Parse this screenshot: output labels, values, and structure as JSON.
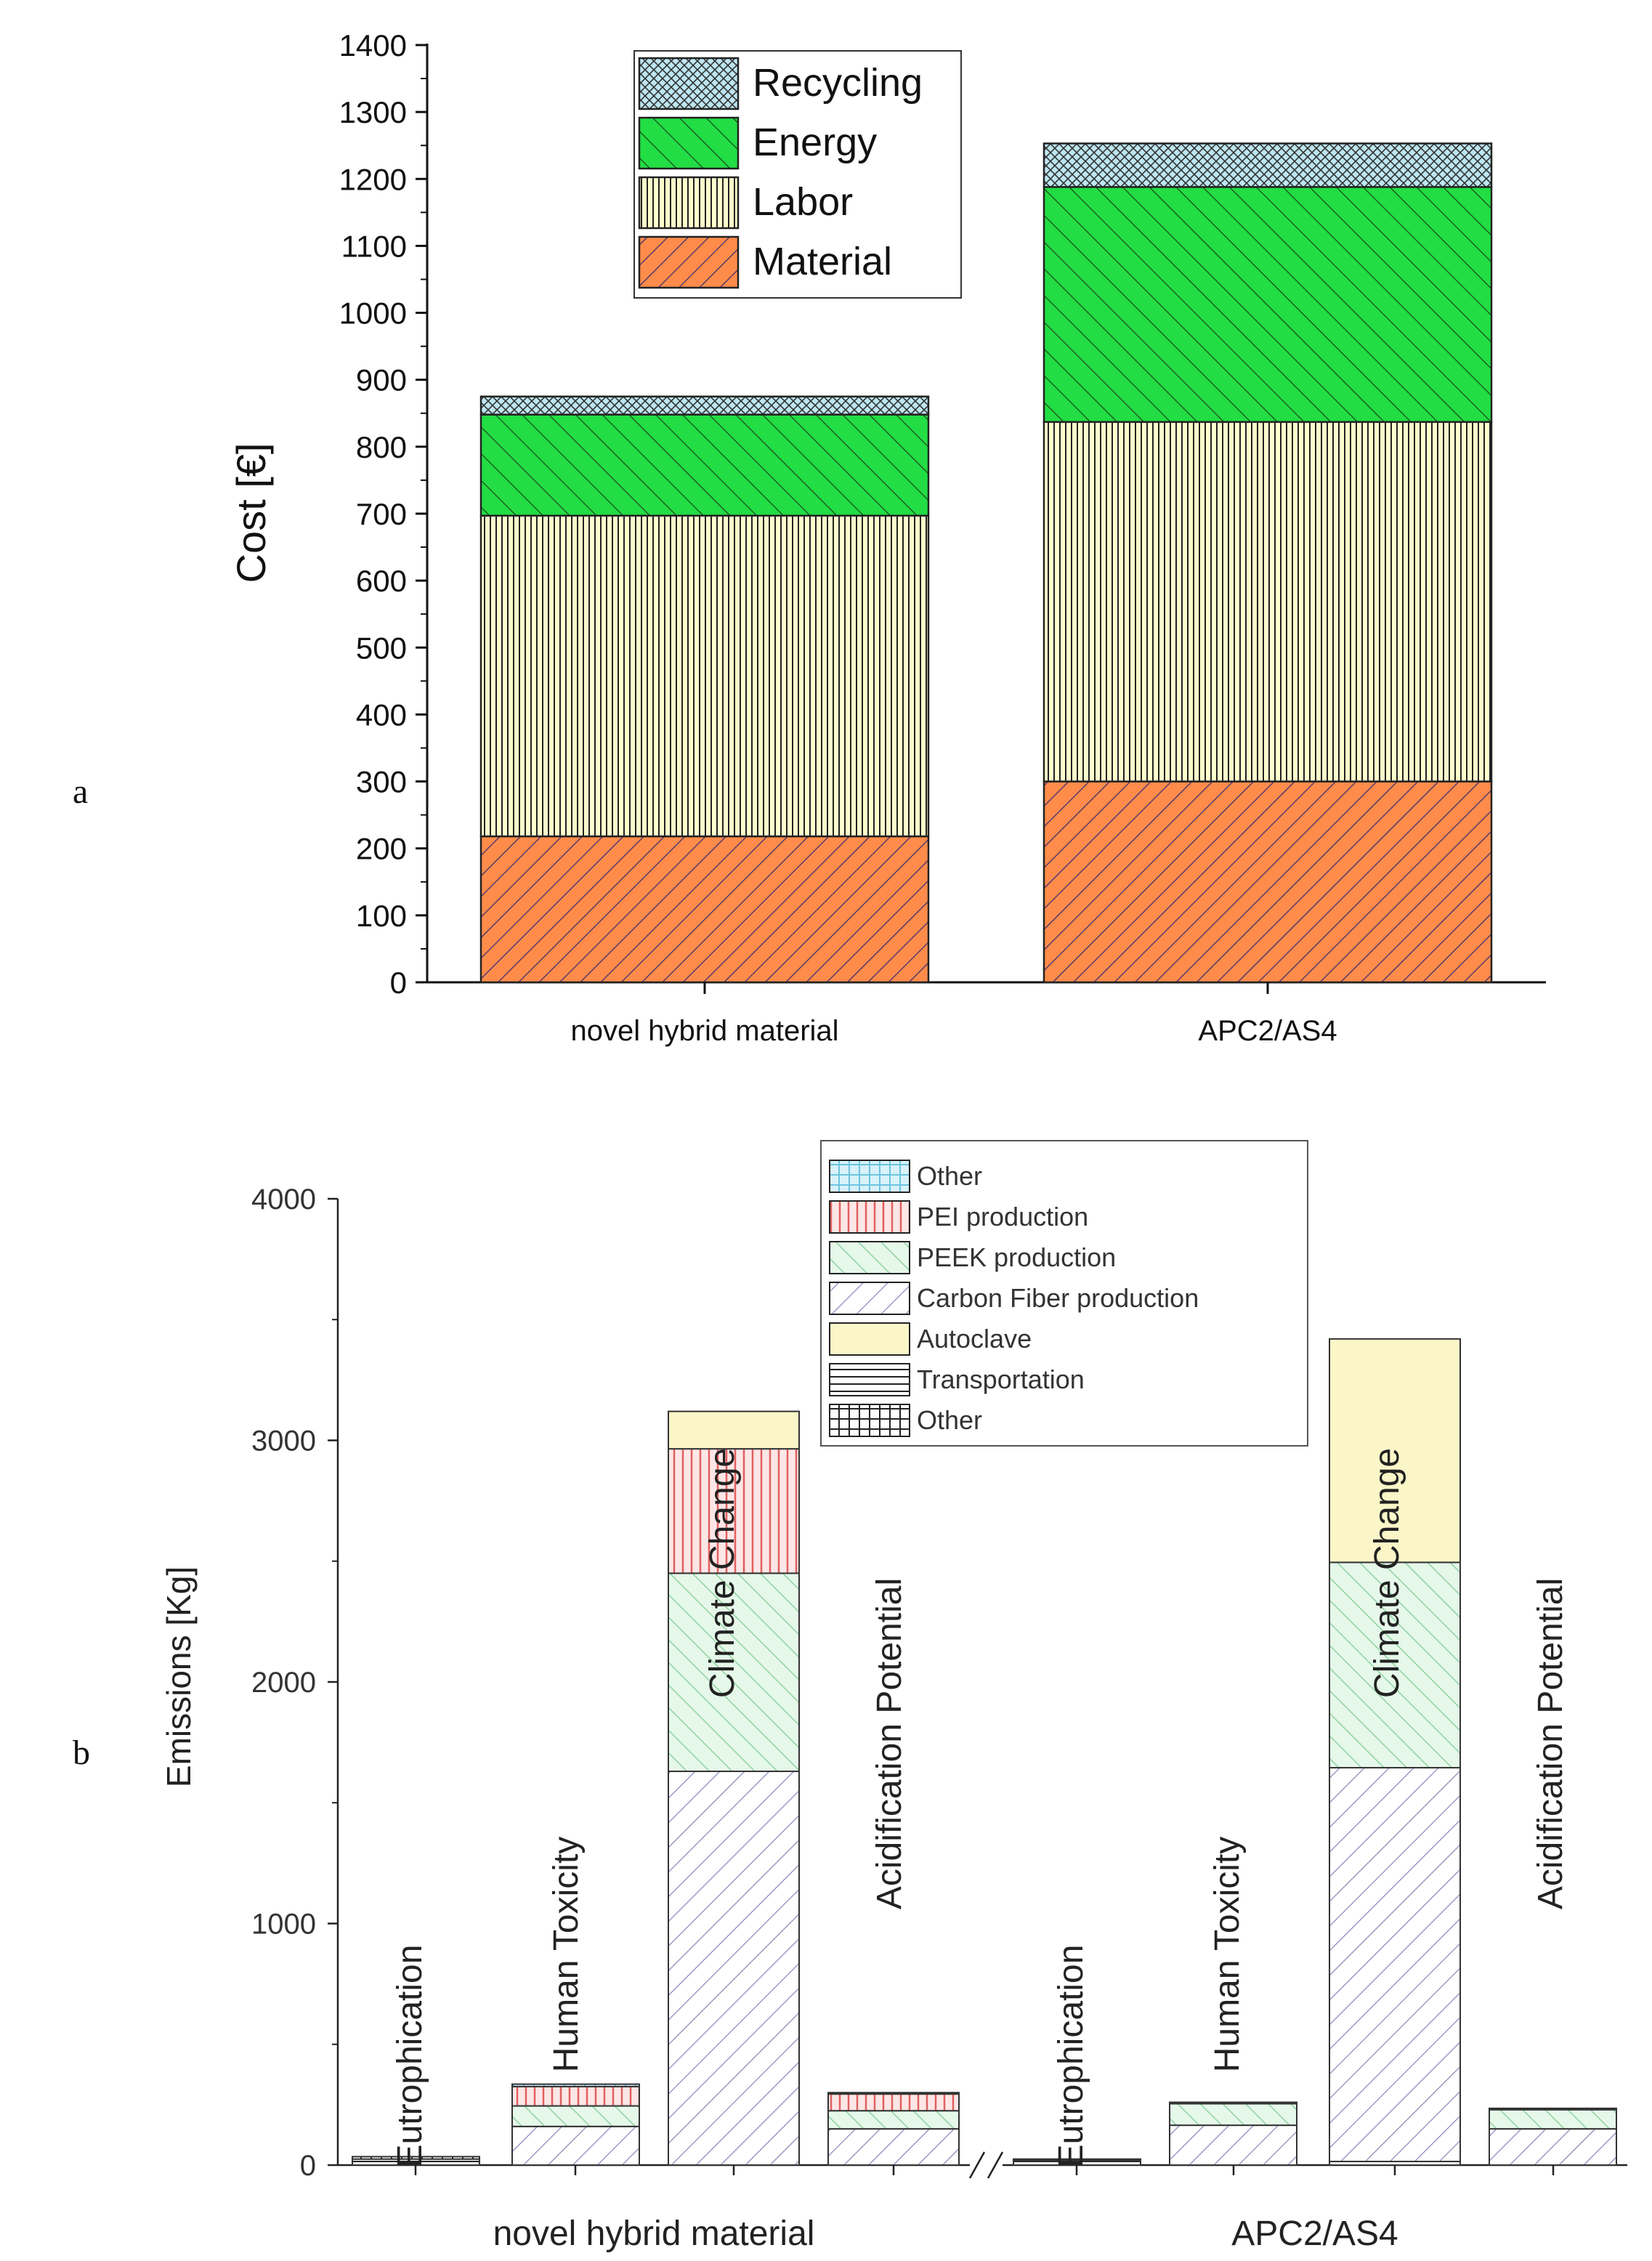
{
  "chart_data": [
    {
      "panel": "a",
      "type": "bar",
      "stacked": true,
      "title": "",
      "xlabel": "",
      "ylabel": "Cost [€]",
      "ylim": [
        0,
        1400
      ],
      "yticks": [
        0,
        100,
        200,
        300,
        400,
        500,
        600,
        700,
        800,
        900,
        1000,
        1100,
        1200,
        1300,
        1400
      ],
      "categories": [
        "novel hybrid material",
        "APC2/AS4"
      ],
      "series": [
        {
          "name": "Material",
          "color": "#ff8c4a",
          "pattern": "diag-dense",
          "values": [
            218,
            300
          ]
        },
        {
          "name": "Labor",
          "color": "#ffffcc",
          "pattern": "vertical",
          "values": [
            479,
            537
          ]
        },
        {
          "name": "Energy",
          "color": "#22dd44",
          "pattern": "diag-back",
          "values": [
            151,
            351
          ]
        },
        {
          "name": "Recycling",
          "color": "#bde6f0",
          "pattern": "cross",
          "values": [
            27,
            65
          ]
        }
      ],
      "legend_order": [
        "Recycling",
        "Energy",
        "Labor",
        "Material"
      ],
      "legend_position": "top-left"
    },
    {
      "panel": "b",
      "type": "bar",
      "stacked": true,
      "title": "",
      "xlabel": "",
      "ylabel": "Emissions [Kg]",
      "ylim": [
        0,
        4000
      ],
      "yticks": [
        0,
        1000,
        2000,
        3000,
        4000
      ],
      "groups": [
        "novel hybrid material",
        "APC2/AS4"
      ],
      "bars": [
        {
          "group": "novel hybrid material",
          "label": "Eutrophication",
          "stack": {
            "Transportation": 25,
            "Other (process)": 10
          }
        },
        {
          "group": "novel hybrid material",
          "label": "Human Toxicity",
          "stack": {
            "Carbon Fiber production": 160,
            "PEEK production": 85,
            "PEI production": 80,
            "Other": 10
          }
        },
        {
          "group": "novel hybrid material",
          "label": "Climate Change",
          "stack": {
            "Carbon Fiber production": 1630,
            "PEEK production": 820,
            "PEI production": 515,
            "Autoclave": 155
          }
        },
        {
          "group": "novel hybrid material",
          "label": "Acidification Potential",
          "stack": {
            "Carbon Fiber production": 150,
            "PEEK production": 75,
            "PEI production": 70,
            "Other": 5
          }
        },
        {
          "group": "APC2/AS4",
          "label": "Eutrophication",
          "stack": {
            "Transportation": 20,
            "Other (process)": 5
          }
        },
        {
          "group": "APC2/AS4",
          "label": "Human Toxicity",
          "stack": {
            "Carbon Fiber production": 165,
            "PEEK production": 90,
            "Other": 5
          }
        },
        {
          "group": "APC2/AS4",
          "label": "Climate Change",
          "stack": {
            "Carbon Fiber production": 1630,
            "PEEK production": 850,
            "Autoclave": 925,
            "Transportation": 15
          }
        },
        {
          "group": "APC2/AS4",
          "label": "Acidification Potential",
          "stack": {
            "Carbon Fiber production": 150,
            "PEEK production": 80,
            "Other": 5
          }
        }
      ],
      "series": [
        {
          "name": "Other",
          "key": "Other",
          "color": "#bfe8f4",
          "pattern": "grid-blue"
        },
        {
          "name": "PEI production",
          "key": "PEI production",
          "color": "#fbd0d0",
          "pattern": "vert-red"
        },
        {
          "name": "PEEK production",
          "key": "PEEK production",
          "color": "#dcf5e2",
          "pattern": "diag-back-green"
        },
        {
          "name": "Carbon Fiber production",
          "key": "Carbon Fiber production",
          "color": "#ffffff",
          "pattern": "diag-purple"
        },
        {
          "name": "Autoclave",
          "key": "Autoclave",
          "color": "#fbf6c8",
          "pattern": "none"
        },
        {
          "name": "Transportation",
          "key": "Transportation",
          "color": "#ffffff",
          "pattern": "horizontal"
        },
        {
          "name": "Other",
          "key": "Other (process)",
          "color": "#ffffff",
          "pattern": "grid-black"
        }
      ],
      "legend_position": "top-right",
      "axis_break_between_groups": true
    }
  ],
  "labels": {
    "panel_a": "a",
    "panel_b": "b"
  }
}
